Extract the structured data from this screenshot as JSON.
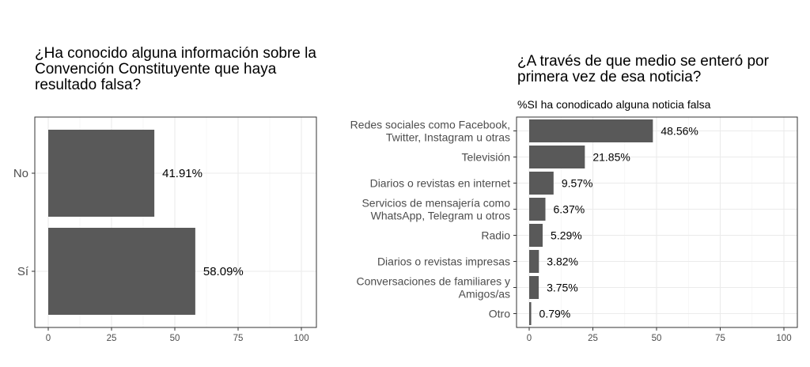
{
  "chart_data": [
    {
      "type": "bar",
      "orientation": "horizontal",
      "title_lines": [
        "¿Ha conocido alguna información sobre la",
        "Convención Constituyente que haya",
        "resultado falsa?"
      ],
      "categories": [
        "No",
        "Sí"
      ],
      "values": [
        41.91,
        58.09
      ],
      "labels": [
        "41.91%",
        "58.09%"
      ],
      "xlim": [
        0,
        100
      ],
      "xticks": [
        "0",
        "25",
        "50",
        "75",
        "100"
      ],
      "grid": true,
      "bar_color": "#595959"
    },
    {
      "type": "bar",
      "orientation": "horizontal",
      "title_lines": [
        "¿A través de que medio se enteró por",
        "primera vez de esa noticia?"
      ],
      "subtitle": "%SI ha conodicado alguna noticia falsa",
      "categories": [
        [
          "Redes sociales como Facebook,",
          "Twitter, Instagram u otras"
        ],
        [
          "Televisión"
        ],
        [
          "Diarios o revistas en internet"
        ],
        [
          "Servicios de mensajería como",
          "WhatsApp, Telegram u otros"
        ],
        [
          "Radio"
        ],
        [
          "Diarios o revistas impresas"
        ],
        [
          "Conversaciones de familiares y",
          "Amigos/as"
        ],
        [
          "Otro"
        ]
      ],
      "values": [
        48.56,
        21.85,
        9.57,
        6.37,
        5.29,
        3.82,
        3.75,
        0.79
      ],
      "labels": [
        "48.56%",
        "21.85%",
        "9.57%",
        "6.37%",
        "5.29%",
        "3.82%",
        "3.75%",
        "0.79%"
      ],
      "xlim": [
        0,
        100
      ],
      "xticks": [
        "0",
        "25",
        "50",
        "75",
        "100"
      ],
      "grid": true,
      "bar_color": "#595959"
    }
  ]
}
